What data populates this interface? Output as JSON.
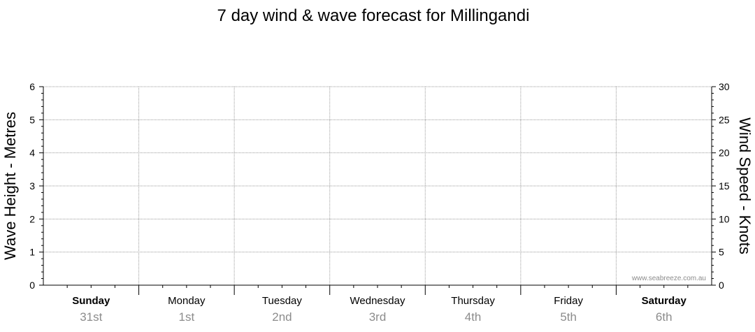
{
  "chart_data": {
    "type": "line",
    "title": "7 day wind & wave forecast for Millingandi",
    "left_axis": {
      "label": "Wave Height - Metres",
      "range": [
        0,
        6
      ],
      "ticks": [
        0,
        1,
        2,
        3,
        4,
        5,
        6
      ]
    },
    "right_axis": {
      "label": "Wind Speed - Knots",
      "range": [
        0,
        30
      ],
      "ticks": [
        0,
        5,
        10,
        15,
        20,
        25,
        30
      ]
    },
    "days": [
      {
        "day": "Sunday",
        "date": "31st",
        "bold": true
      },
      {
        "day": "Monday",
        "date": "1st",
        "bold": false
      },
      {
        "day": "Tuesday",
        "date": "2nd",
        "bold": false
      },
      {
        "day": "Wednesday",
        "date": "3rd",
        "bold": false
      },
      {
        "day": "Thursday",
        "date": "4th",
        "bold": false
      },
      {
        "day": "Friday",
        "date": "5th",
        "bold": false
      },
      {
        "day": "Saturday",
        "date": "6th",
        "bold": true
      }
    ],
    "series": [],
    "grid": true,
    "watermark": "www.seabreeze.com.au"
  }
}
